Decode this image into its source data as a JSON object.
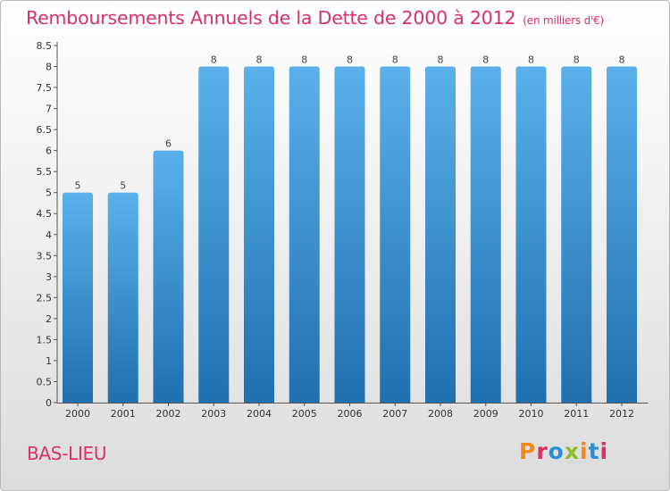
{
  "header": {
    "title": "Remboursements Annuels de la Dette de 2000 à 2012",
    "subtitle": "(en milliers d'€)"
  },
  "footer": {
    "commune": "BAS-LIEU",
    "logo_text": "Proxiti"
  },
  "colors": {
    "title": "#d8306a",
    "bar_top": "#5ab1ea",
    "bar_bottom": "#1f70b0",
    "logo_letters": [
      "#f08a1c",
      "#d8306a",
      "#2a8fd6",
      "#8dbf2a",
      "#f08a1c",
      "#2a8fd6",
      "#d8306a"
    ]
  },
  "chart_data": {
    "type": "bar",
    "title": "Remboursements Annuels de la Dette de 2000 à 2012",
    "subtitle": "(en milliers d'€)",
    "xlabel": "",
    "ylabel": "",
    "categories": [
      "2000",
      "2001",
      "2002",
      "2003",
      "2004",
      "2005",
      "2006",
      "2007",
      "2008",
      "2009",
      "2010",
      "2011",
      "2012"
    ],
    "values": [
      5,
      5,
      6,
      8,
      8,
      8,
      8,
      8,
      8,
      8,
      8,
      8,
      8
    ],
    "data_labels": [
      "5",
      "5",
      "6",
      "8",
      "8",
      "8",
      "8",
      "8",
      "8",
      "8",
      "8",
      "8",
      "8"
    ],
    "ylim": [
      0,
      8.5
    ],
    "yticks": [
      0,
      0.5,
      1,
      1.5,
      2,
      2.5,
      3,
      3.5,
      4,
      4.5,
      5,
      5.5,
      6,
      6.5,
      7,
      7.5,
      8,
      8.5
    ],
    "ytick_labels": [
      "0",
      "0.5",
      "1",
      "1.5",
      "2",
      "2.5",
      "3",
      "3.5",
      "4",
      "4.5",
      "5",
      "5.5",
      "6",
      "6.5",
      "7",
      "7.5",
      "8",
      "8.5"
    ],
    "grid": false,
    "legend": "none"
  }
}
